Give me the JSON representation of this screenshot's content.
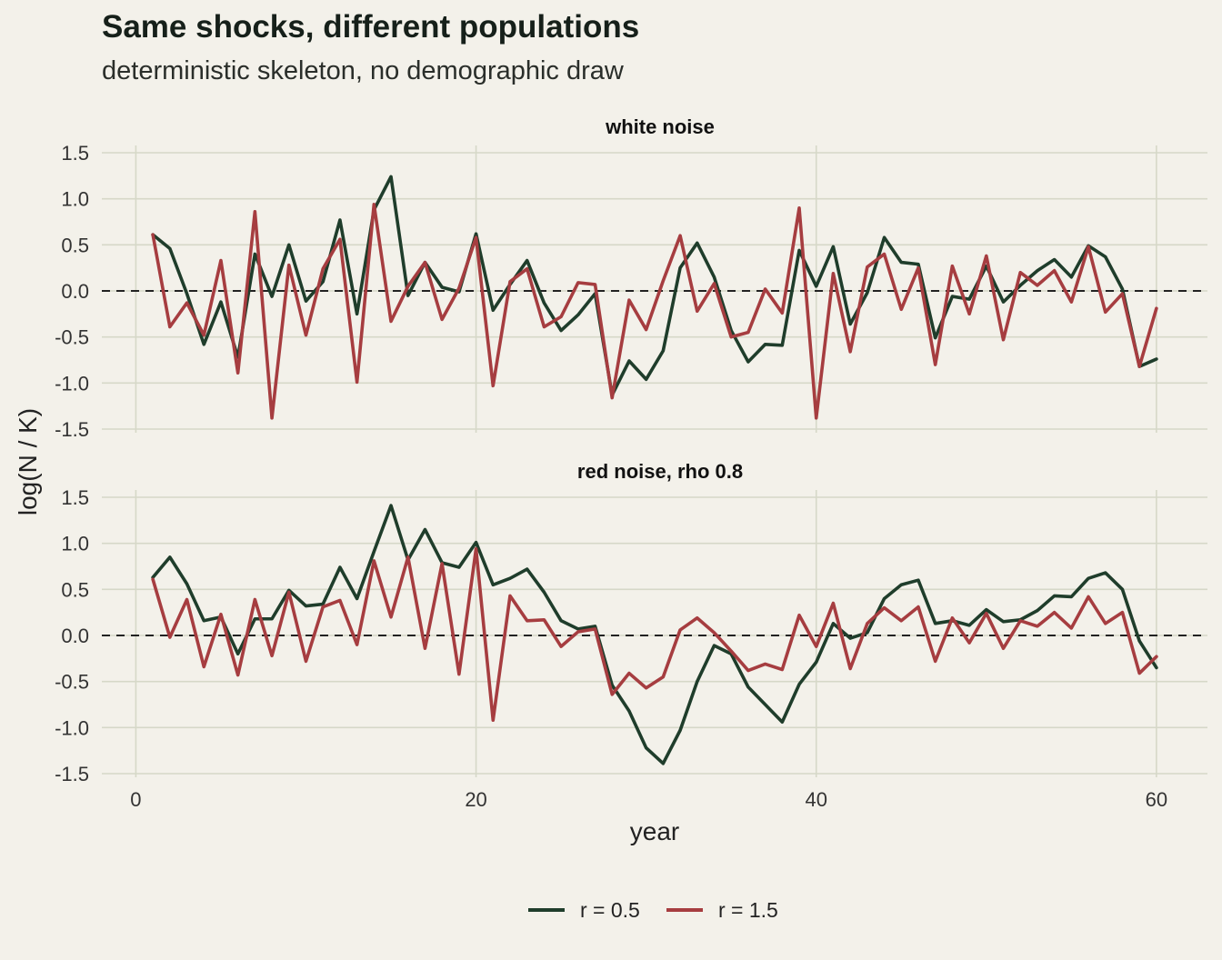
{
  "chart_data": {
    "type": "line",
    "title": "Same shocks, different populations",
    "subtitle": "deterministic skeleton, no demographic draw",
    "xlabel": "year",
    "ylabel": "log(N / K)",
    "xlim": [
      -2,
      63
    ],
    "ylim": [
      -1.5,
      1.5
    ],
    "x_ticks": [
      0,
      20,
      40,
      60
    ],
    "y_ticks": [
      -1.5,
      -1.0,
      -0.5,
      0.0,
      0.5,
      1.0,
      1.5
    ],
    "y_tick_labels": [
      "-1.5",
      "-1.0",
      "-0.5",
      "0.0",
      "0.5",
      "1.0",
      "1.5"
    ],
    "reference_line_y": 0,
    "legend": {
      "position": "bottom",
      "entries": [
        "r = 0.5",
        "r = 1.5"
      ]
    },
    "colors": {
      "r05": "#1f3d2b",
      "r15": "#a63d40",
      "grid": "#d6d8c8",
      "background": "#f3f1ea"
    },
    "x": [
      1,
      2,
      3,
      4,
      5,
      6,
      7,
      8,
      9,
      10,
      11,
      12,
      13,
      14,
      15,
      16,
      17,
      18,
      19,
      20,
      21,
      22,
      23,
      24,
      25,
      26,
      27,
      28,
      29,
      30,
      31,
      32,
      33,
      34,
      35,
      36,
      37,
      38,
      39,
      40,
      41,
      42,
      43,
      44,
      45,
      46,
      47,
      48,
      49,
      50,
      51,
      52,
      53,
      54,
      55,
      56,
      57,
      58,
      59,
      60
    ],
    "panels": [
      {
        "strip": "white noise",
        "series": [
          {
            "name": "r = 0.5",
            "color": "#1f3d2b",
            "values": [
              0.61,
              0.46,
              -0.03,
              -0.58,
              -0.12,
              -0.72,
              0.4,
              -0.06,
              0.5,
              -0.11,
              0.1,
              0.77,
              -0.25,
              0.88,
              1.24,
              -0.05,
              0.31,
              0.04,
              -0.01,
              0.62,
              -0.21,
              0.07,
              0.33,
              -0.13,
              -0.43,
              -0.26,
              -0.03,
              -1.13,
              -0.76,
              -0.96,
              -0.65,
              0.25,
              0.52,
              0.15,
              -0.43,
              -0.77,
              -0.58,
              -0.59,
              0.44,
              0.05,
              0.48,
              -0.36,
              -0.02,
              0.58,
              0.31,
              0.29,
              -0.51,
              -0.06,
              -0.09,
              0.27,
              -0.12,
              0.06,
              0.22,
              0.34,
              0.15,
              0.49,
              0.37,
              0.02,
              -0.82,
              -0.74
            ]
          },
          {
            "name": "r = 1.5",
            "color": "#a63d40",
            "values": [
              0.61,
              -0.39,
              -0.13,
              -0.48,
              0.33,
              -0.89,
              0.86,
              -1.38,
              0.28,
              -0.48,
              0.24,
              0.56,
              -0.99,
              0.94,
              -0.33,
              0.05,
              0.31,
              -0.31,
              0.03,
              0.58,
              -1.03,
              0.1,
              0.24,
              -0.39,
              -0.28,
              0.09,
              0.07,
              -1.16,
              -0.1,
              -0.42,
              0.11,
              0.6,
              -0.22,
              0.08,
              -0.5,
              -0.45,
              0.02,
              -0.24,
              0.9,
              -1.38,
              0.19,
              -0.66,
              0.26,
              0.4,
              -0.2,
              0.25,
              -0.8,
              0.27,
              -0.25,
              0.38,
              -0.53,
              0.2,
              0.06,
              0.22,
              -0.12,
              0.48,
              -0.23,
              -0.03,
              -0.82,
              -0.19
            ]
          }
        ]
      },
      {
        "strip": "red noise, rho 0.8",
        "series": [
          {
            "name": "r = 0.5",
            "color": "#1f3d2b",
            "values": [
              0.63,
              0.85,
              0.56,
              0.16,
              0.2,
              -0.2,
              0.18,
              0.18,
              0.49,
              0.32,
              0.34,
              0.74,
              0.4,
              0.91,
              1.41,
              0.82,
              1.15,
              0.79,
              0.74,
              1.01,
              0.55,
              0.62,
              0.72,
              0.47,
              0.16,
              0.07,
              0.1,
              -0.54,
              -0.82,
              -1.22,
              -1.39,
              -1.03,
              -0.5,
              -0.11,
              -0.2,
              -0.56,
              -0.75,
              -0.94,
              -0.53,
              -0.29,
              0.13,
              -0.03,
              0.03,
              0.4,
              0.55,
              0.6,
              0.13,
              0.16,
              0.11,
              0.28,
              0.15,
              0.17,
              0.27,
              0.43,
              0.42,
              0.62,
              0.68,
              0.5,
              -0.06,
              -0.35
            ]
          },
          {
            "name": "r = 1.5",
            "color": "#a63d40",
            "values": [
              0.61,
              -0.02,
              0.39,
              -0.34,
              0.23,
              -0.43,
              0.39,
              -0.22,
              0.47,
              -0.28,
              0.31,
              0.38,
              -0.1,
              0.81,
              0.2,
              0.85,
              -0.14,
              0.78,
              -0.42,
              0.94,
              -0.92,
              0.43,
              0.16,
              0.17,
              -0.12,
              0.04,
              0.07,
              -0.64,
              -0.41,
              -0.57,
              -0.45,
              0.06,
              0.19,
              0.03,
              -0.17,
              -0.38,
              -0.31,
              -0.37,
              0.22,
              -0.12,
              0.35,
              -0.36,
              0.13,
              0.3,
              0.16,
              0.31,
              -0.28,
              0.19,
              -0.08,
              0.24,
              -0.14,
              0.16,
              0.1,
              0.25,
              0.08,
              0.42,
              0.13,
              0.25,
              -0.41,
              -0.23
            ]
          }
        ]
      }
    ]
  }
}
